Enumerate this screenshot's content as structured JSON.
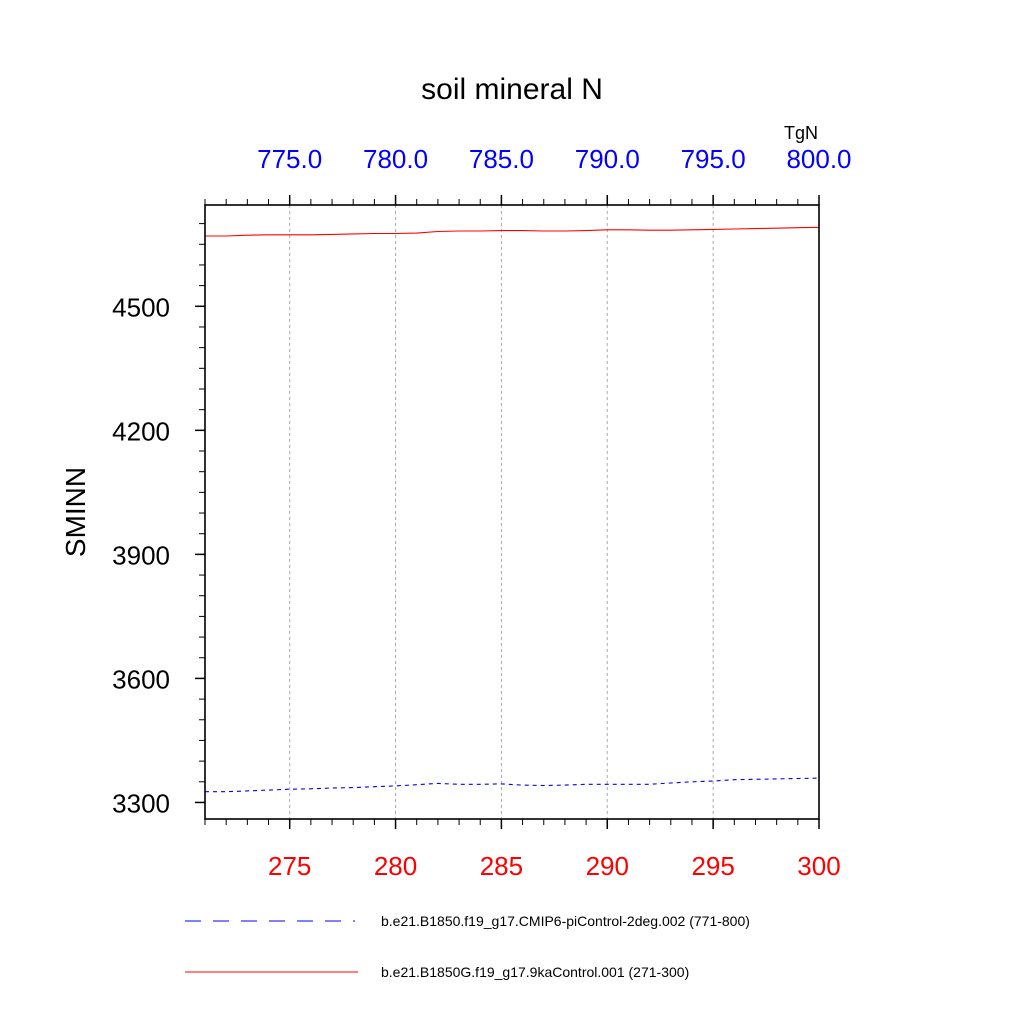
{
  "chart_data": {
    "type": "line",
    "title": "soil mineral N",
    "ylabel": "SMINN",
    "units_label": "TgN",
    "bottom_axis": {
      "range": [
        271,
        300
      ],
      "ticks": [
        "275",
        "280",
        "285",
        "290",
        "295",
        "300"
      ],
      "color": "#ff0000"
    },
    "top_axis": {
      "range": [
        771,
        800
      ],
      "ticks": [
        "775.0",
        "780.0",
        "785.0",
        "790.0",
        "795.0",
        "800.0"
      ],
      "color": "#0000ff"
    },
    "y_axis": {
      "range": [
        3260,
        4745
      ],
      "ticks": [
        "3300",
        "3600",
        "3900",
        "4200",
        "4500"
      ]
    },
    "grid": "vertical dashed at major ticks",
    "legend_position": "bottom",
    "series": [
      {
        "name": "b.e21.B1850.f19_g17.CMIP6-piControl-2deg.002 (771-800)",
        "axis": "top",
        "color": "#0000ff",
        "style": "dashed",
        "x": [
          771,
          772,
          773,
          774,
          775,
          776,
          777,
          778,
          779,
          780,
          781,
          782,
          783,
          784,
          785,
          786,
          787,
          788,
          789,
          790,
          791,
          792,
          793,
          794,
          795,
          796,
          797,
          798,
          799,
          800
        ],
        "values": [
          3326,
          3326,
          3328,
          3330,
          3332,
          3333,
          3335,
          3336,
          3338,
          3340,
          3343,
          3346,
          3344,
          3344,
          3345,
          3342,
          3341,
          3342,
          3344,
          3344,
          3344,
          3344,
          3347,
          3350,
          3352,
          3355,
          3356,
          3357,
          3358,
          3359
        ]
      },
      {
        "name": "b.e21.B1850G.f19_g17.9kaControl.001 (271-300)",
        "axis": "bottom",
        "color": "#ff0000",
        "style": "solid",
        "x": [
          271,
          272,
          273,
          274,
          275,
          276,
          277,
          278,
          279,
          280,
          281,
          282,
          283,
          284,
          285,
          286,
          287,
          288,
          289,
          290,
          291,
          292,
          293,
          294,
          295,
          296,
          297,
          298,
          299,
          300
        ],
        "values": [
          4670,
          4670,
          4672,
          4673,
          4673,
          4673,
          4674,
          4675,
          4676,
          4676,
          4677,
          4681,
          4682,
          4682,
          4683,
          4683,
          4682,
          4682,
          4683,
          4685,
          4685,
          4684,
          4684,
          4685,
          4686,
          4687,
          4688,
          4689,
          4690,
          4691
        ]
      }
    ]
  }
}
